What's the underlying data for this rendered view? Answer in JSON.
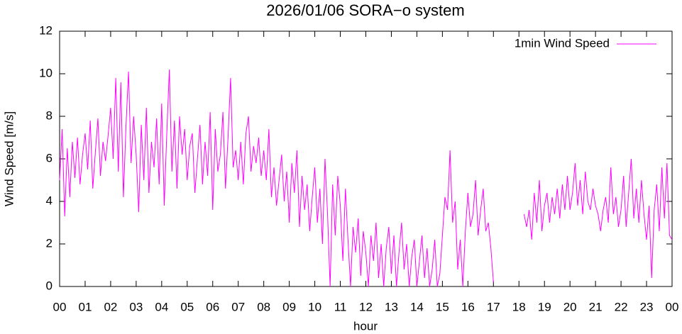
{
  "chart_data": {
    "type": "line",
    "title": "2026/01/06 SORA−o system",
    "xlabel": "hour",
    "ylabel": "Wind Speed [m/s]",
    "legend": "top-right",
    "xlim": [
      0,
      24
    ],
    "ylim": [
      0,
      12
    ],
    "yticks": [
      0,
      2,
      4,
      6,
      8,
      10,
      12
    ],
    "xticks": [
      {
        "value": 0,
        "label": "00"
      },
      {
        "value": 1,
        "label": "01"
      },
      {
        "value": 2,
        "label": "02"
      },
      {
        "value": 3,
        "label": "03"
      },
      {
        "value": 4,
        "label": "04"
      },
      {
        "value": 5,
        "label": "05"
      },
      {
        "value": 6,
        "label": "06"
      },
      {
        "value": 7,
        "label": "07"
      },
      {
        "value": 8,
        "label": "08"
      },
      {
        "value": 9,
        "label": "09"
      },
      {
        "value": 10,
        "label": "10"
      },
      {
        "value": 11,
        "label": "11"
      },
      {
        "value": 12,
        "label": "12"
      },
      {
        "value": 13,
        "label": "13"
      },
      {
        "value": 14,
        "label": "14"
      },
      {
        "value": 15,
        "label": "15"
      },
      {
        "value": 16,
        "label": "16"
      },
      {
        "value": 17,
        "label": "17"
      },
      {
        "value": 18,
        "label": "18"
      },
      {
        "value": 19,
        "label": "19"
      },
      {
        "value": 20,
        "label": "20"
      },
      {
        "value": 21,
        "label": "21"
      },
      {
        "value": 22,
        "label": "22"
      },
      {
        "value": 23,
        "label": "23"
      },
      {
        "value": 24,
        "label": "00"
      }
    ],
    "x": [
      0,
      0.1,
      0.2,
      0.3,
      0.4,
      0.5,
      0.6,
      0.7,
      0.8,
      0.9,
      1,
      1.1,
      1.2,
      1.3,
      1.4,
      1.5,
      1.6,
      1.7,
      1.8,
      1.9,
      2,
      2.1,
      2.2,
      2.3,
      2.4,
      2.5,
      2.6,
      2.7,
      2.8,
      2.9,
      3,
      3.1,
      3.2,
      3.3,
      3.4,
      3.5,
      3.6,
      3.7,
      3.8,
      3.9,
      4,
      4.1,
      4.2,
      4.3,
      4.4,
      4.5,
      4.6,
      4.7,
      4.8,
      4.9,
      5,
      5.1,
      5.2,
      5.3,
      5.4,
      5.5,
      5.6,
      5.7,
      5.8,
      5.9,
      6,
      6.1,
      6.2,
      6.3,
      6.4,
      6.5,
      6.6,
      6.7,
      6.8,
      6.9,
      7,
      7.1,
      7.2,
      7.3,
      7.4,
      7.5,
      7.6,
      7.7,
      7.8,
      7.9,
      8,
      8.1,
      8.2,
      8.3,
      8.4,
      8.5,
      8.6,
      8.7,
      8.8,
      8.9,
      9,
      9.1,
      9.2,
      9.3,
      9.4,
      9.5,
      9.6,
      9.7,
      9.8,
      9.9,
      10,
      10.1,
      10.2,
      10.3,
      10.4,
      10.5,
      10.6,
      10.7,
      10.8,
      10.9,
      11,
      11.1,
      11.2,
      11.3,
      11.4,
      11.5,
      11.6,
      11.7,
      11.8,
      11.9,
      12,
      12.1,
      12.2,
      12.3,
      12.4,
      12.5,
      12.6,
      12.7,
      12.8,
      12.9,
      13,
      13.1,
      13.2,
      13.3,
      13.4,
      13.5,
      13.6,
      13.7,
      13.8,
      13.9,
      14,
      14.1,
      14.2,
      14.3,
      14.4,
      14.5,
      14.6,
      14.7,
      14.8,
      14.9,
      15,
      15.1,
      15.2,
      15.3,
      15.4,
      15.5,
      15.6,
      15.7,
      15.8,
      15.9,
      16,
      16.1,
      16.2,
      16.3,
      16.4,
      16.5,
      16.6,
      16.7,
      16.8,
      16.9,
      17,
      17.1,
      17.2,
      17.3,
      17.4,
      17.5,
      17.6,
      17.7,
      17.8,
      17.9,
      18,
      18.1,
      18.2,
      18.3,
      18.4,
      18.5,
      18.6,
      18.7,
      18.8,
      18.9,
      19,
      19.1,
      19.2,
      19.3,
      19.4,
      19.5,
      19.6,
      19.7,
      19.8,
      19.9,
      20,
      20.1,
      20.2,
      20.3,
      20.4,
      20.5,
      20.6,
      20.7,
      20.8,
      20.9,
      21,
      21.1,
      21.2,
      21.3,
      21.4,
      21.5,
      21.6,
      21.7,
      21.8,
      21.9,
      22,
      22.1,
      22.2,
      22.3,
      22.4,
      22.5,
      22.6,
      22.7,
      22.8,
      22.9,
      23,
      23.1,
      23.2,
      23.3,
      23.4,
      23.5,
      23.6,
      23.7,
      23.8,
      23.9,
      24
    ],
    "series": [
      {
        "name": "1min Wind Speed",
        "color": "#ff00ff",
        "values": [
          5.0,
          7.4,
          3.3,
          6.5,
          4.2,
          6.8,
          5.1,
          7.0,
          4.8,
          6.2,
          7.2,
          5.5,
          7.8,
          4.6,
          6.3,
          7.9,
          5.2,
          6.8,
          5.9,
          7.1,
          8.4,
          6.0,
          9.8,
          5.4,
          9.6,
          4.2,
          7.5,
          10.1,
          5.8,
          8.0,
          6.2,
          3.5,
          7.6,
          5.0,
          8.4,
          4.4,
          6.8,
          5.6,
          7.9,
          4.8,
          8.6,
          3.8,
          7.2,
          10.2,
          5.4,
          7.8,
          4.6,
          8.0,
          6.2,
          7.4,
          5.0,
          6.6,
          7.2,
          4.4,
          6.0,
          7.6,
          4.8,
          6.8,
          5.2,
          8.2,
          3.6,
          7.4,
          5.4,
          6.2,
          8.2,
          4.6,
          7.0,
          9.8,
          5.6,
          6.4,
          5.0,
          6.8,
          4.8,
          7.2,
          8.0,
          5.4,
          6.6,
          5.8,
          7.0,
          5.2,
          6.4,
          5.0,
          7.4,
          4.2,
          5.6,
          3.8,
          5.0,
          6.2,
          4.0,
          5.4,
          3.0,
          5.8,
          4.4,
          6.4,
          2.8,
          5.2,
          3.6,
          4.8,
          2.6,
          4.2,
          5.6,
          3.0,
          4.6,
          2.0,
          6.0,
          3.4,
          0.0,
          4.8,
          2.4,
          5.2,
          3.8,
          1.2,
          4.6,
          2.2,
          0.0,
          2.8,
          1.6,
          3.2,
          0.5,
          2.6,
          1.6,
          0.0,
          2.4,
          1.2,
          3.0,
          0.4,
          2.0,
          0.0,
          1.8,
          2.8,
          0.6,
          2.4,
          0.0,
          1.6,
          3.0,
          0.8,
          2.0,
          0.0,
          1.4,
          2.2,
          0.0,
          1.2,
          2.4,
          0.4,
          1.8,
          0.0,
          0.8,
          2.2,
          0.0,
          0.6,
          2.4,
          4.2,
          3.6,
          6.4,
          3.0,
          4.0,
          0.8,
          2.2,
          0.0,
          2.6,
          4.4,
          2.8,
          3.4,
          5.0,
          2.4,
          3.6,
          4.6,
          2.6,
          3.0,
          1.8,
          0.2,
          null,
          null,
          null,
          null,
          null,
          null,
          null,
          null,
          null,
          null,
          null,
          3.4,
          2.8,
          3.6,
          2.2,
          4.4,
          3.0,
          5.0,
          2.6,
          3.8,
          4.4,
          3.0,
          4.2,
          3.4,
          4.6,
          3.2,
          4.8,
          3.6,
          5.2,
          3.6,
          4.4,
          5.8,
          3.8,
          5.0,
          3.4,
          5.4,
          4.0,
          3.6,
          4.6,
          3.8,
          3.4,
          2.6,
          3.6,
          4.2,
          3.0,
          5.6,
          3.4,
          4.2,
          2.8,
          3.6,
          5.2,
          2.8,
          4.4,
          6.0,
          3.2,
          4.6,
          3.0,
          5.0,
          3.4,
          2.2,
          3.8,
          0.4,
          3.6,
          4.8,
          2.6,
          5.6,
          3.2,
          5.8,
          2.4,
          2.2
        ]
      }
    ]
  }
}
